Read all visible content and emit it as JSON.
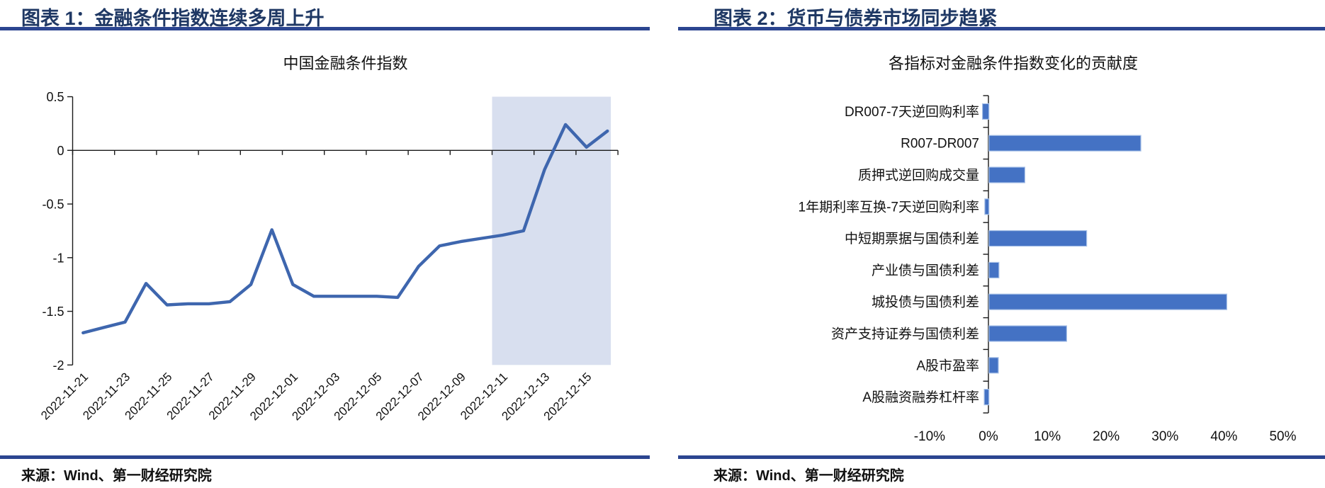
{
  "panels": {
    "chart1": {
      "header": "图表 1：金融条件指数连续多周上升",
      "source": "来源：Wind、第一财经研究院"
    },
    "chart2": {
      "header": "图表 2：货币与债券市场同步趋紧",
      "source": "来源：Wind、第一财经研究院"
    }
  },
  "colors": {
    "header_text": "#1F3864",
    "rule": "#2B4590",
    "line": "#3E66AE",
    "bar_fill": "#4472C4",
    "bar_border": "#A9C2E8",
    "highlight": "#D8DFEF",
    "axis": "#1a1a1a",
    "text": "#111111"
  },
  "chart_data": [
    {
      "type": "line",
      "title": "中国金融条件指数",
      "x": [
        "2022-11-21",
        "2022-11-22",
        "2022-11-23",
        "2022-11-24",
        "2022-11-25",
        "2022-11-26",
        "2022-11-27",
        "2022-11-28",
        "2022-11-29",
        "2022-11-30",
        "2022-12-01",
        "2022-12-02",
        "2022-12-03",
        "2022-12-04",
        "2022-12-05",
        "2022-12-06",
        "2022-12-07",
        "2022-12-08",
        "2022-12-09",
        "2022-12-10",
        "2022-12-11",
        "2022-12-12",
        "2022-12-13",
        "2022-12-14",
        "2022-12-15",
        "2022-12-16"
      ],
      "values": [
        -1.7,
        -1.65,
        -1.6,
        -1.24,
        -1.44,
        -1.43,
        -1.43,
        -1.41,
        -1.25,
        -0.74,
        -1.25,
        -1.36,
        -1.36,
        -1.36,
        -1.36,
        -1.37,
        -1.08,
        -0.89,
        -0.85,
        -0.82,
        -0.79,
        -0.75,
        -0.18,
        0.24,
        0.03,
        0.18
      ],
      "x_tick_labels": [
        "2022-11-21",
        "2022-11-23",
        "2022-11-25",
        "2022-11-27",
        "2022-11-29",
        "2022-12-01",
        "2022-12-03",
        "2022-12-05",
        "2022-12-07",
        "2022-12-09",
        "2022-12-11",
        "2022-12-13",
        "2022-12-15"
      ],
      "yticks": [
        0.5,
        0,
        -0.5,
        -1,
        -1.5,
        -2
      ],
      "ytick_labels": [
        "0.5",
        "0",
        "-0.5",
        "-1",
        "-1.5",
        "-2"
      ],
      "ylim": [
        -2,
        0.5
      ],
      "grid": false,
      "legend": "none",
      "highlight_region": {
        "from": "2022-12-11",
        "to": "2022-12-16"
      }
    },
    {
      "type": "bar",
      "orientation": "horizontal",
      "title": "各指标对金融条件指数变化的贡献度",
      "categories": [
        "DR007-7天逆回购利率",
        "R007-DR007",
        "质押式逆回购成交量",
        "1年期利率互换-7天逆回购利率",
        "中短期票据与国债利差",
        "产业债与国债利差",
        "城投债与国债利差",
        "资产支持证券与国债利差",
        "A股市盈率",
        "A股融资融券杠杆率"
      ],
      "values": [
        -1.1,
        25.8,
        6.1,
        -0.7,
        16.6,
        1.7,
        40.4,
        13.2,
        1.6,
        -0.8
      ],
      "unit": "%",
      "xticks": [
        -10,
        0,
        10,
        20,
        30,
        40,
        50
      ],
      "xtick_labels": [
        "-10%",
        "0%",
        "10%",
        "20%",
        "30%",
        "40%",
        "50%"
      ],
      "xlim": [
        -10,
        50
      ],
      "grid": false,
      "legend": "none"
    }
  ]
}
